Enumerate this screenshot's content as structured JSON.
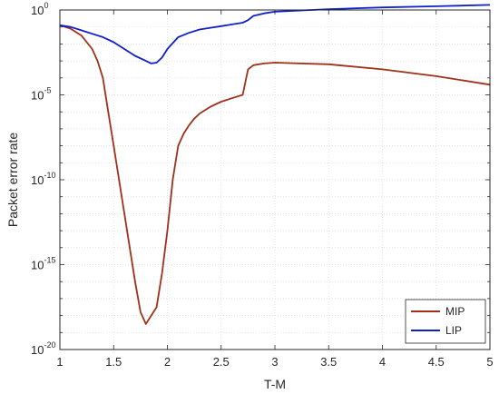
{
  "chart_data": {
    "type": "line",
    "title": "",
    "xlabel": "T-M",
    "ylabel": "Packet error rate",
    "xlim": [
      1,
      5
    ],
    "ylim_log10": [
      -20,
      0
    ],
    "yscale": "log",
    "grid": true,
    "legend_position": "bottom-right",
    "x_ticks": [
      "1",
      "1.5",
      "2",
      "2.5",
      "3",
      "3.5",
      "4",
      "4.5",
      "5"
    ],
    "y_ticks": [
      {
        "base": "10",
        "exp": "0"
      },
      {
        "base": "10",
        "exp": "-5"
      },
      {
        "base": "10",
        "exp": "-10"
      },
      {
        "base": "10",
        "exp": "-15"
      },
      {
        "base": "10",
        "exp": "-20"
      }
    ],
    "series": [
      {
        "name": "MIP",
        "color": "#a0301a",
        "x": [
          1.0,
          1.1,
          1.2,
          1.3,
          1.35,
          1.4,
          1.45,
          1.5,
          1.55,
          1.6,
          1.65,
          1.7,
          1.75,
          1.8,
          1.85,
          1.9,
          1.95,
          2.0,
          2.05,
          2.1,
          2.15,
          2.2,
          2.25,
          2.3,
          2.4,
          2.5,
          2.6,
          2.7,
          2.75,
          2.8,
          2.9,
          3.0,
          3.5,
          4.0,
          4.5,
          5.0
        ],
        "log10_y": [
          -0.9,
          -1.1,
          -1.5,
          -2.3,
          -3.0,
          -4.0,
          -6.0,
          -8.0,
          -10.0,
          -12.0,
          -14.0,
          -16.0,
          -17.8,
          -18.5,
          -18.0,
          -17.5,
          -15.5,
          -13.0,
          -10.0,
          -8.0,
          -7.3,
          -6.8,
          -6.4,
          -6.1,
          -5.7,
          -5.4,
          -5.2,
          -5.0,
          -3.5,
          -3.25,
          -3.15,
          -3.1,
          -3.2,
          -3.5,
          -3.9,
          -4.4
        ]
      },
      {
        "name": "LIP",
        "color": "#1020c8",
        "x": [
          1.0,
          1.1,
          1.2,
          1.3,
          1.4,
          1.5,
          1.6,
          1.7,
          1.8,
          1.85,
          1.9,
          1.95,
          2.0,
          2.1,
          2.2,
          2.3,
          2.4,
          2.5,
          2.6,
          2.7,
          2.75,
          2.8,
          2.9,
          3.0,
          3.5,
          4.0,
          4.5,
          5.0
        ],
        "log10_y": [
          -0.9,
          -1.0,
          -1.2,
          -1.4,
          -1.6,
          -1.9,
          -2.3,
          -2.7,
          -3.0,
          -3.15,
          -3.1,
          -2.8,
          -2.3,
          -1.6,
          -1.35,
          -1.15,
          -1.05,
          -0.95,
          -0.85,
          -0.75,
          -0.6,
          -0.35,
          -0.2,
          -0.1,
          0.05,
          0.15,
          0.22,
          0.3
        ]
      }
    ]
  }
}
